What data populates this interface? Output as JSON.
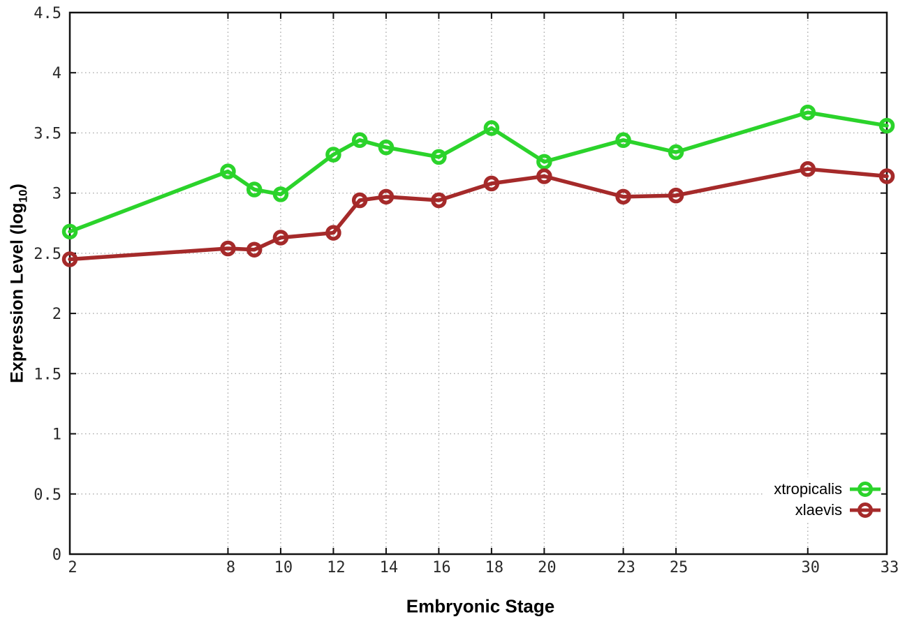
{
  "chart_data": {
    "type": "line",
    "title": "",
    "xlabel": "Embryonic Stage",
    "ylabel": "Expression Level (log10)",
    "ylabel_parts": {
      "prefix": "Expression Level (log",
      "sub": "10",
      "suffix": ")"
    },
    "x": [
      2,
      8,
      9,
      10,
      12,
      13,
      14,
      16,
      18,
      20,
      23,
      25,
      30,
      33
    ],
    "series": [
      {
        "name": "xtropicalis",
        "color": "#2bd32b",
        "values": [
          2.68,
          3.18,
          3.03,
          2.99,
          3.32,
          3.44,
          3.38,
          3.3,
          3.54,
          3.26,
          3.44,
          3.34,
          3.67,
          3.56
        ]
      },
      {
        "name": "xlaevis",
        "color": "#a52a2a",
        "values": [
          2.45,
          2.54,
          2.53,
          2.63,
          2.67,
          2.94,
          2.97,
          2.94,
          3.08,
          3.14,
          2.97,
          2.98,
          3.2,
          3.14
        ]
      }
    ],
    "xlim": [
      2,
      33
    ],
    "ylim": [
      0,
      4.5
    ],
    "xticks": {
      "values": [
        2,
        8,
        10,
        12,
        14,
        16,
        18,
        20,
        23,
        25,
        30,
        33
      ],
      "labels": [
        "2",
        "8",
        "10",
        "12",
        "14",
        "16",
        "18",
        "20",
        "23",
        "25",
        "30",
        "33"
      ]
    },
    "yticks": {
      "values": [
        0,
        0.5,
        1,
        1.5,
        2,
        2.5,
        3,
        3.5,
        4,
        4.5
      ],
      "labels": [
        "0",
        "0.5",
        "1",
        "1.5",
        "2",
        "2.5",
        "3",
        "3.5",
        "4",
        "4.5"
      ]
    },
    "grid": true,
    "legend_position": "inside-bottom-right",
    "colors": {
      "grid": "#a9a9a9",
      "border": "#111111",
      "tick_text": "#2a2a2a"
    }
  }
}
